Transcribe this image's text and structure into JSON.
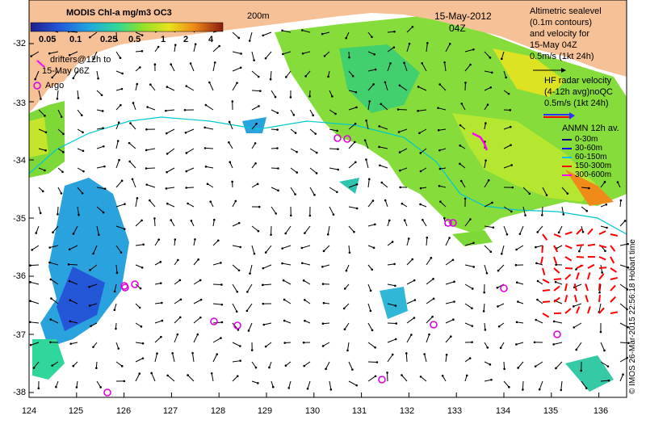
{
  "colorbar": {
    "title": "MODIS Chl-a mg/m3 OC3",
    "ticks": [
      "0.05",
      "0.1",
      "0.25",
      "0.5",
      "1",
      "2",
      "4"
    ]
  },
  "isobath_label": "200m",
  "date": "15-May-2012",
  "time": "04Z",
  "altimetry_legend": [
    "Altimetric sealevel",
    "(0.1m contours)",
    "and velocity for",
    "15-May 04Z",
    "0.5m/s (1kt 24h)"
  ],
  "hf_radar_legend": [
    "HF radar velocity",
    "(4-12h avg)noQC",
    "0.5m/s (1kt 24h)"
  ],
  "anmn_legend": {
    "title": "ANMN 12h av.",
    "items": [
      {
        "label": "0-30m",
        "color": "#000080"
      },
      {
        "label": "30-60m",
        "color": "#0000ff"
      },
      {
        "label": "60-150m",
        "color": "#00c0ff"
      },
      {
        "label": "150-300m",
        "color": "#ff0000"
      },
      {
        "label": "300-600m",
        "color": "#ff00ff"
      }
    ]
  },
  "drifters_legend": [
    "drifters@12h to",
    "15-May 06Z"
  ],
  "argo_legend": "Argo",
  "x_ticks": [
    "124",
    "125",
    "126",
    "127",
    "128",
    "129",
    "130",
    "131",
    "132",
    "133",
    "134",
    "135",
    "136"
  ],
  "y_ticks": [
    "-32",
    "-33",
    "-34",
    "-35",
    "-36",
    "-37",
    "-38"
  ],
  "credit": "© IMOS 26-Mar-2015 22:56:18 Hobart time",
  "colors": {
    "land": "#f6c196",
    "argo": "#e000e0",
    "drifter": "#ff00ff",
    "hf_radar": "#ff0000",
    "isobath": "#00c8d0",
    "arrow": "#000000"
  }
}
